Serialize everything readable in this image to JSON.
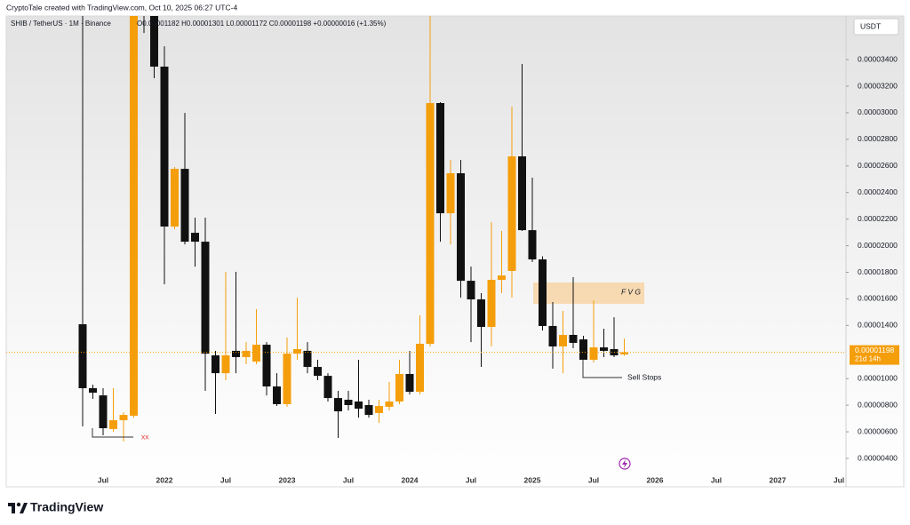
{
  "header": {
    "credit": "CryptoTale created with TradingView.com, Oct 10, 2025 06:27 UTC-4",
    "symbol": "SHIB / TetherUS · 1M · Binance",
    "ohlc": "O0.00001182 H0.00001301 L0.00001172 C0.00001198 +0.00000016 (+1.35%)"
  },
  "chart_data": {
    "type": "candlestick",
    "categories": [
      null,
      null,
      "Jul",
      null,
      null,
      null,
      null,
      null,
      "2022",
      null,
      null,
      null,
      null,
      null,
      "Jul",
      null,
      null,
      null,
      null,
      null,
      "2023",
      null,
      null,
      null,
      null,
      null,
      "Jul",
      null,
      null,
      null,
      null,
      null,
      "2024",
      null,
      null,
      null,
      null,
      null,
      "Jul",
      null,
      null,
      null,
      null,
      null,
      "2025",
      null,
      null,
      null,
      null,
      null,
      "Jul",
      null,
      null,
      null,
      null,
      null,
      "2026",
      null,
      null,
      null,
      null,
      null,
      "Jul",
      null,
      null,
      null,
      null,
      null,
      "2027",
      null,
      null,
      null,
      null,
      null,
      "Jul"
    ],
    "open": [
      1.409e-05,
      9.28e-06,
      8.74e-06,
      6.21e-06,
      6.87e-06,
      7.21e-06,
      4.87e-05,
      4.12e-05,
      3.347e-05,
      2.144e-05,
      2.578e-05,
      2.097e-05,
      2.03e-05,
      1.175e-05,
      1.041e-05,
      1.209e-05,
      1.162e-05,
      1.128e-05,
      1.255e-05,
      9.41e-06,
      8.08e-06,
      1.188e-05,
      1.209e-05,
      1.088e-05,
      1.021e-05,
      8.54e-06,
      8.41e-06,
      8.28e-06,
      8.01e-06,
      7.41e-06,
      7.88e-06,
      8.28e-06,
      1.035e-05,
      9.01e-06,
      1.262e-05,
      3.073e-05,
      2.244e-05,
      2.545e-05,
      1.736e-05,
      1.596e-05,
      1.389e-05,
      1.743e-05,
      1.81e-05,
      2.672e-05,
      2.117e-05,
      1.897e-05,
      1.396e-05,
      1.242e-05,
      1.329e-05,
      1.295e-05,
      1.142e-05,
      1.235e-05,
      1.222e-05,
      1.182e-05,
      null,
      null,
      null,
      null,
      null,
      null,
      null,
      null,
      null,
      null,
      null,
      null,
      null,
      null,
      null,
      null,
      null,
      null,
      null,
      null,
      null
    ],
    "high": [
      4e-05,
      9.55e-06,
      9.28e-06,
      9.28e-06,
      7.47e-06,
      8.85e-05,
      5.25e-05,
      4.2e-05,
      3.5e-05,
      2.592e-05,
      2.999e-05,
      2.211e-05,
      2.211e-05,
      1.209e-05,
      1.803e-05,
      1.803e-05,
      1.275e-05,
      1.523e-05,
      1.275e-05,
      1.041e-05,
      1.309e-05,
      1.609e-05,
      1.275e-05,
      1.142e-05,
      1.041e-05,
      9.08e-06,
      9.08e-06,
      1.142e-05,
      8.41e-06,
      8.41e-06,
      9.75e-06,
      1.142e-05,
      1.209e-05,
      1.476e-05,
      4.55e-05,
      3.08e-05,
      2.645e-05,
      2.645e-05,
      1.843e-05,
      1.643e-05,
      2.177e-05,
      2.111e-05,
      3.046e-05,
      3.367e-05,
      2.512e-05,
      1.92e-05,
      1.576e-05,
      1.509e-05,
      1.763e-05,
      1.322e-05,
      1.589e-05,
      1.376e-05,
      1.462e-05,
      1.301e-05,
      null,
      null,
      null,
      null,
      null,
      null,
      null,
      null,
      null,
      null,
      null,
      null,
      null,
      null,
      null,
      null,
      null,
      null,
      null,
      null,
      null
    ],
    "low": [
      6.41e-06,
      8.48e-06,
      5.74e-06,
      6e-06,
      5.27e-06,
      7.07e-06,
      3.6e-05,
      3.26e-05,
      1.71e-05,
      2.124e-05,
      2.01e-05,
      1.843e-05,
      9.08e-06,
      7.34e-06,
      9.88e-06,
      1.041e-05,
      1.108e-05,
      1.108e-05,
      8.74e-06,
      7.94e-06,
      7.88e-06,
      1.142e-05,
      1.041e-05,
      9.88e-06,
      8.28e-06,
      5.54e-06,
      7.61e-06,
      7.07e-06,
      7.07e-06,
      6.67e-06,
      7.61e-06,
      8.08e-06,
      8.81e-06,
      8.81e-06,
      1.242e-05,
      2.03e-05,
      2.01e-05,
      1.609e-05,
      1.275e-05,
      1.088e-05,
      1.242e-05,
      1.643e-05,
      1.609e-05,
      2.111e-05,
      1.877e-05,
      1.362e-05,
      1.075e-05,
      1.041e-05,
      1.229e-05,
      1.142e-05,
      1.122e-05,
      1.162e-05,
      1.162e-05,
      1.172e-05,
      null,
      null,
      null,
      null,
      null,
      null,
      null,
      null,
      null,
      null,
      null,
      null,
      null,
      null,
      null,
      null,
      null,
      null,
      null,
      null,
      null
    ],
    "close": [
      9.28e-06,
      8.94e-06,
      6.27e-06,
      6.87e-06,
      7.27e-06,
      4.87e-05,
      4.12e-05,
      3.347e-05,
      2.144e-05,
      2.578e-05,
      2.03e-05,
      2.03e-05,
      1.188e-05,
      1.041e-05,
      1.175e-05,
      1.162e-05,
      1.209e-05,
      1.255e-05,
      9.41e-06,
      8.08e-06,
      1.188e-05,
      1.222e-05,
      1.088e-05,
      1.021e-05,
      8.54e-06,
      7.54e-06,
      8.01e-06,
      7.74e-06,
      7.27e-06,
      7.94e-06,
      8.28e-06,
      1.035e-05,
      9.01e-06,
      1.262e-05,
      3.073e-05,
      2.244e-05,
      2.545e-05,
      1.736e-05,
      1.596e-05,
      1.389e-05,
      1.743e-05,
      1.776e-05,
      2.672e-05,
      2.117e-05,
      1.897e-05,
      1.396e-05,
      1.242e-05,
      1.329e-05,
      1.269e-05,
      1.142e-05,
      1.235e-05,
      1.209e-05,
      1.175e-05,
      1.198e-05,
      null,
      null,
      null,
      null,
      null,
      null,
      null,
      null,
      null,
      null,
      null,
      null,
      null,
      null,
      null,
      null,
      null,
      null,
      null,
      null,
      null
    ],
    "colors": {
      "up": "#f59e0b",
      "down": "#111111"
    },
    "ylim": [
      1.862e-06,
      3.728e-05
    ],
    "yticks": [
      {
        "value": 4e-06,
        "label": "0.00000400"
      },
      {
        "value": 6e-06,
        "label": "0.00000600"
      },
      {
        "value": 8e-06,
        "label": "0.00000800"
      },
      {
        "value": 1e-05,
        "label": "0.00001000"
      },
      {
        "value": 1.4e-05,
        "label": "0.00001400"
      },
      {
        "value": 1.6e-05,
        "label": "0.00001600"
      },
      {
        "value": 1.8e-05,
        "label": "0.00001800"
      },
      {
        "value": 2e-05,
        "label": "0.00002000"
      },
      {
        "value": 2.2e-05,
        "label": "0.00002200"
      },
      {
        "value": 2.4e-05,
        "label": "0.00002400"
      },
      {
        "value": 2.6e-05,
        "label": "0.00002600"
      },
      {
        "value": 2.8e-05,
        "label": "0.00002800"
      },
      {
        "value": 3e-05,
        "label": "0.00003000"
      },
      {
        "value": 3.2e-05,
        "label": "0.00003200"
      },
      {
        "value": 3.4e-05,
        "label": "0.00003400"
      }
    ],
    "currency": "USDT",
    "last_price": {
      "value": 1.198e-05,
      "label": "0.00001198"
    },
    "countdown": "21d 14h",
    "annotations": {
      "fvg": "F V G",
      "sell_stops": "Sell Stops",
      "marker": "xx"
    }
  },
  "footer": {
    "brand": "TradingView"
  }
}
